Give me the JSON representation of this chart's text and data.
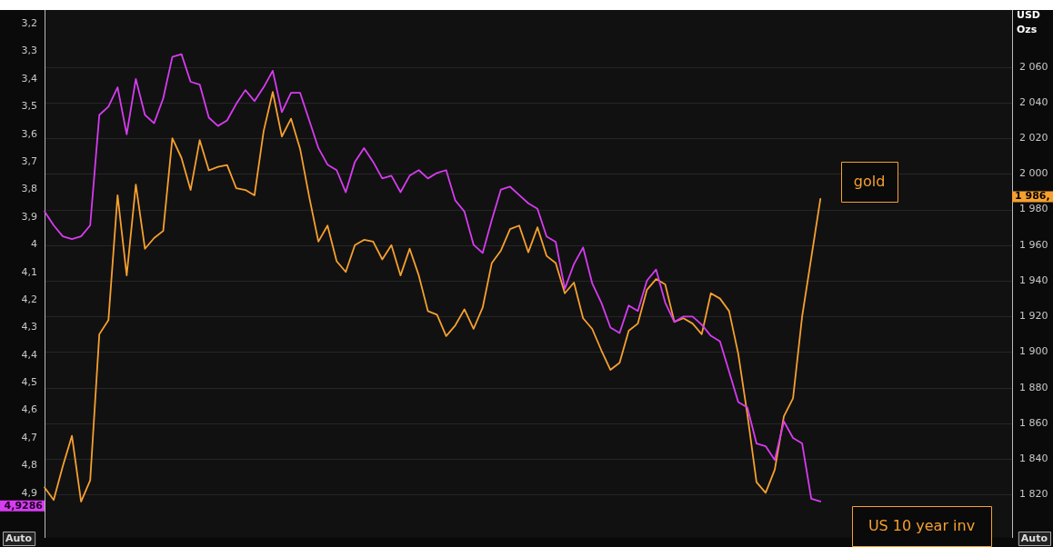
{
  "chart_data": {
    "type": "line",
    "y2label": "USD Ozs",
    "categories": [
      null,
      null,
      null,
      null,
      null,
      null,
      null,
      null,
      null,
      null,
      null,
      null,
      null,
      null,
      null,
      null,
      null,
      null,
      null,
      null,
      null,
      null,
      null,
      null,
      null,
      null,
      null,
      null,
      null,
      null,
      null,
      null,
      null,
      null,
      null,
      null,
      null,
      null,
      null,
      null,
      null,
      null,
      null,
      null,
      null,
      null,
      null,
      null,
      null,
      null,
      null,
      null,
      null,
      null,
      null,
      null,
      null,
      null,
      null,
      null,
      null,
      null,
      null,
      null,
      null,
      null,
      null,
      null,
      null,
      null,
      null,
      null,
      null,
      null,
      null,
      null,
      null,
      null,
      null,
      null,
      null,
      null,
      null,
      null,
      null,
      null,
      null,
      null,
      null,
      null,
      null,
      null,
      null,
      null,
      null,
      null,
      null,
      null,
      null,
      null,
      null,
      null,
      null,
      null,
      null,
      null,
      null
    ],
    "series": [
      {
        "name": "US 10 year inv",
        "color": "#d63cf0",
        "values": [
          3.88,
          3.93,
          3.97,
          3.98,
          3.97,
          3.93,
          3.53,
          3.5,
          3.43,
          3.6,
          3.4,
          3.53,
          3.56,
          3.47,
          3.32,
          3.31,
          3.41,
          3.42,
          3.54,
          3.57,
          3.55,
          3.49,
          3.44,
          3.48,
          3.43,
          3.37,
          3.52,
          3.45,
          3.45,
          3.55,
          3.65,
          3.71,
          3.73,
          3.81,
          3.7,
          3.65,
          3.7,
          3.76,
          3.75,
          3.81,
          3.75,
          3.73,
          3.76,
          3.74,
          3.73,
          3.84,
          3.88,
          4.0,
          4.03,
          3.91,
          3.8,
          3.79,
          3.82,
          3.85,
          3.87,
          3.97,
          3.99,
          4.16,
          4.07,
          4.01,
          4.14,
          4.21,
          4.3,
          4.32,
          4.22,
          4.24,
          4.13,
          4.09,
          4.21,
          4.28,
          4.26,
          4.26,
          4.29,
          4.33,
          4.35,
          4.46,
          4.57,
          4.59,
          4.72,
          4.73,
          4.78,
          4.64,
          4.7,
          4.72,
          4.92,
          4.93,
          null,
          null,
          null,
          null,
          null,
          null,
          null,
          null,
          null,
          null,
          null,
          null,
          null,
          null,
          null,
          null,
          null,
          null,
          null,
          null,
          null
        ]
      },
      {
        "name": "gold",
        "color": "#f5a030",
        "axis": "y2",
        "values": [
          1824,
          1817,
          1836,
          1853,
          1816,
          1828,
          1910,
          1918,
          1988,
          1943,
          1994,
          1958,
          1964,
          1968,
          2020,
          2009,
          1991,
          2019,
          2002,
          2004,
          2005,
          1992,
          1991,
          1988,
          2024,
          2046,
          2021,
          2031,
          2014,
          1987,
          1962,
          1971,
          1951,
          1945,
          1960,
          1963,
          1962,
          1952,
          1960,
          1943,
          1958,
          1943,
          1923,
          1921,
          1909,
          1915,
          1924,
          1913,
          1925,
          1950,
          1957,
          1969,
          1971,
          1956,
          1970,
          1954,
          1950,
          1933,
          1939,
          1919,
          1913,
          1901,
          1890,
          1894,
          1912,
          1916,
          1935,
          1941,
          1938,
          1917,
          1919,
          1916,
          1910,
          1933,
          1930,
          1923,
          1899,
          1865,
          1827,
          1821,
          1834,
          1864,
          1874,
          1920,
          1953,
          1986,
          null,
          null,
          null,
          null,
          null,
          null,
          null,
          null,
          null,
          null,
          null,
          null,
          null,
          null,
          null,
          null,
          null,
          null,
          null,
          null,
          null
        ]
      }
    ],
    "ylim": [
      5.06,
      3.15
    ],
    "yticks": [
      {
        "value": 3.2,
        "label": "3,2"
      },
      {
        "value": 3.3,
        "label": "3,3"
      },
      {
        "value": 3.4,
        "label": "3,4"
      },
      {
        "value": 3.5,
        "label": "3,5"
      },
      {
        "value": 3.6,
        "label": "3,6"
      },
      {
        "value": 3.7,
        "label": "3,7"
      },
      {
        "value": 3.8,
        "label": "3,8"
      },
      {
        "value": 3.9,
        "label": "3,9"
      },
      4,
      {
        "value": 4.1,
        "label": "4,1"
      },
      {
        "value": 4.2,
        "label": "4,2"
      },
      {
        "value": 4.3,
        "label": "4,3"
      },
      {
        "value": 4.4,
        "label": "4,4"
      },
      {
        "value": 4.5,
        "label": "4,5"
      },
      {
        "value": 4.6,
        "label": "4,6"
      },
      {
        "value": 4.7,
        "label": "4,7"
      },
      {
        "value": 4.8,
        "label": "4,8"
      },
      {
        "value": 4.9,
        "label": "4,9"
      }
    ],
    "y2lim": [
      1796,
      2092
    ],
    "y2ticks": [
      {
        "value": 1820,
        "label": "1 820"
      },
      {
        "value": 1840,
        "label": "1 840"
      },
      {
        "value": 1860,
        "label": "1 860"
      },
      {
        "value": 1880,
        "label": "1 880"
      },
      {
        "value": 1900,
        "label": "1 900"
      },
      {
        "value": 1920,
        "label": "1 920"
      },
      {
        "value": 1940,
        "label": "1 940"
      },
      {
        "value": 1960,
        "label": "1 960"
      },
      {
        "value": 1980,
        "label": "1 980"
      },
      {
        "value": 2000,
        "label": "2 000"
      },
      {
        "value": 2020,
        "label": "2 020"
      },
      {
        "value": 2040,
        "label": "2 040"
      },
      {
        "value": 2060,
        "label": "2 060"
      }
    ],
    "grid": "y",
    "legend": "right",
    "marker": "none",
    "line_style": "solid",
    "annotations": [
      "4,9286",
      "1 986,",
      "Auto",
      "Auto"
    ]
  }
}
